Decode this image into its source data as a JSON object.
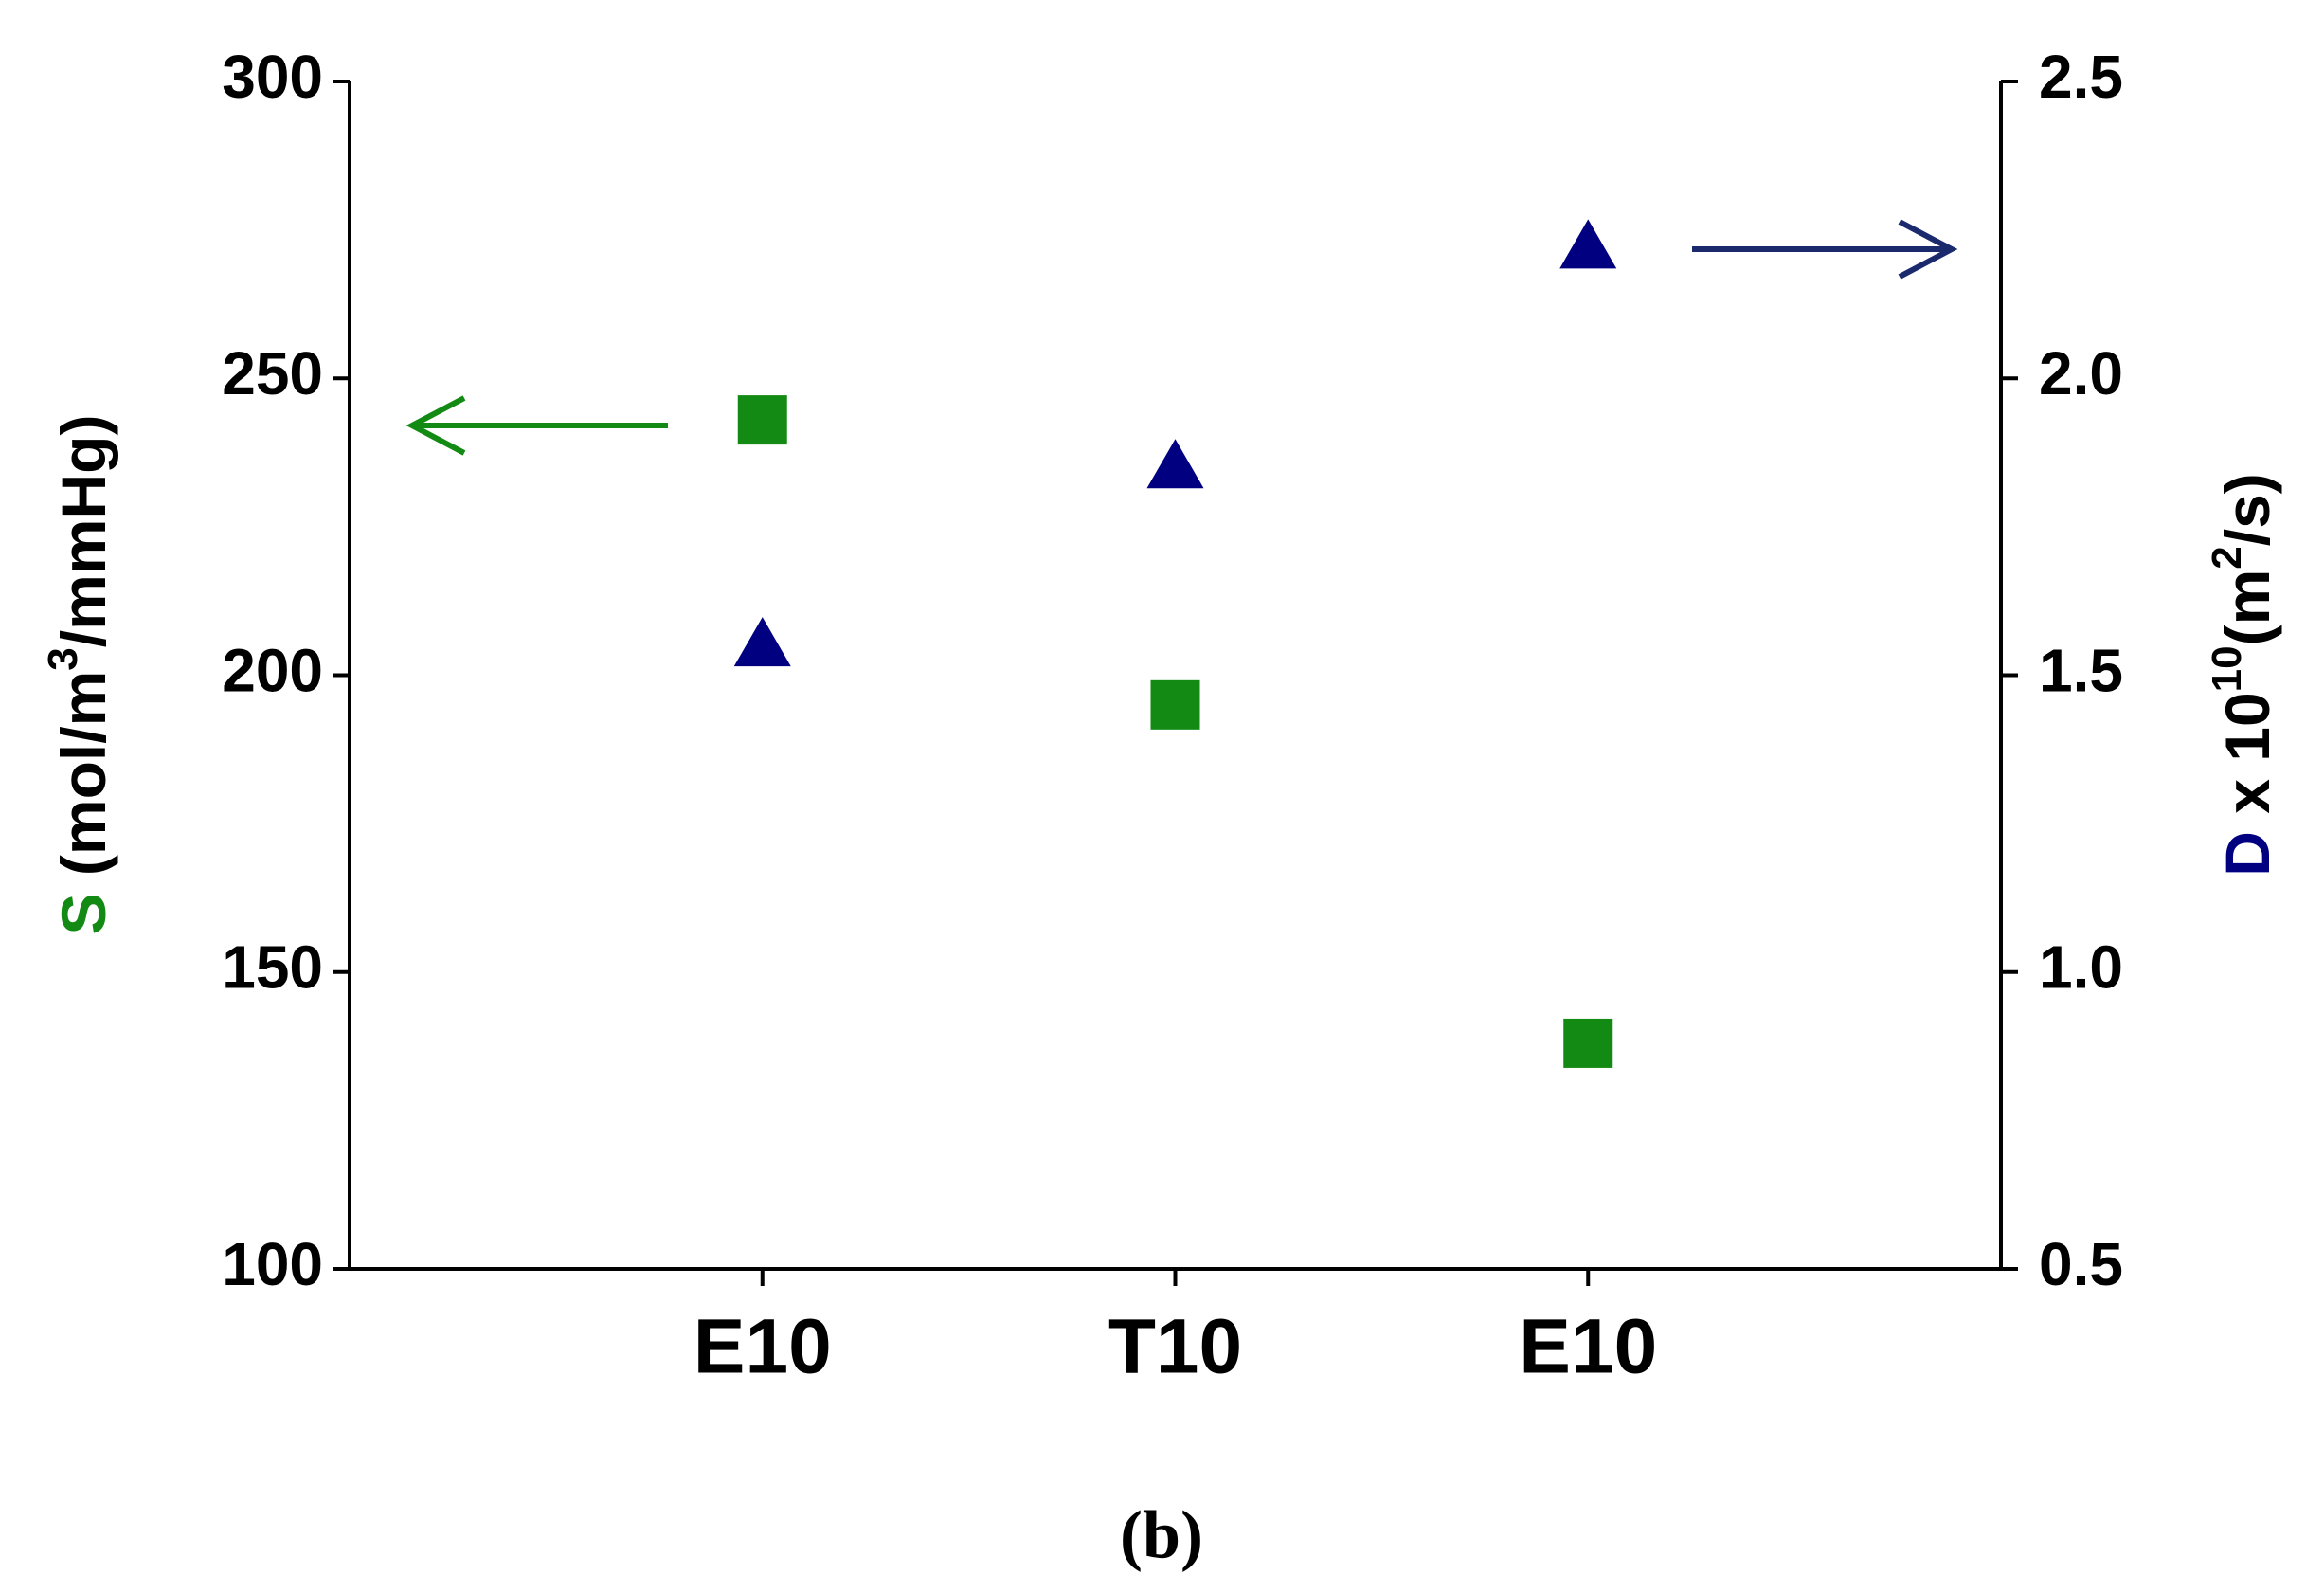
{
  "chart_data": {
    "type": "scatter",
    "categories": [
      "E10",
      "T10",
      "E10"
    ],
    "series": [
      {
        "name": "S",
        "color": "#138a13",
        "marker": "square",
        "values": [
          243,
          195,
          138
        ]
      },
      {
        "name": "D",
        "color": "#000080",
        "marker": "triangle",
        "axis": "y2",
        "values": [
          1.55,
          1.85,
          2.22
        ]
      }
    ],
    "ylabel": [
      "S",
      " (mol/m",
      "3",
      "/mmHg)"
    ],
    "y2label": [
      "D",
      " x 10",
      "10",
      "(m",
      "2",
      "/s)"
    ],
    "ylim": [
      100,
      300
    ],
    "yticks": [
      100,
      150,
      200,
      250,
      300
    ],
    "y2lim": [
      0.5,
      2.5
    ],
    "y2ticks": [
      0.5,
      {
        "value": 1,
        "label": "1.0"
      },
      1.5,
      {
        "value": 2,
        "label": "2.0"
      },
      2.5
    ],
    "caption": "(b)"
  }
}
